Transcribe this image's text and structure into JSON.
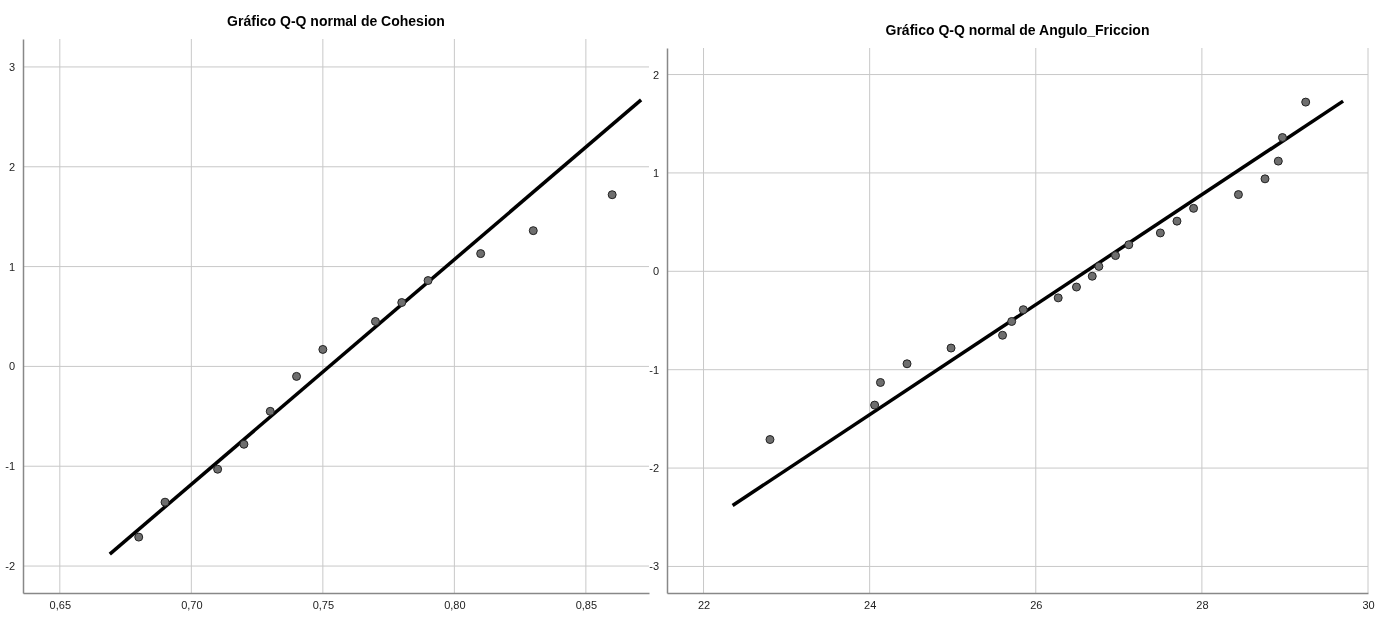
{
  "chart_data": [
    {
      "type": "scatter",
      "title": "Gráfico Q-Q normal de Cohesion",
      "grid": true,
      "xlim": [
        0.636,
        0.874
      ],
      "ylim": [
        -2.27,
        3.28
      ],
      "xticks": [
        {
          "value": 0.65,
          "label": "0,65"
        },
        {
          "value": 0.7,
          "label": "0,70"
        },
        {
          "value": 0.75,
          "label": "0,75"
        },
        {
          "value": 0.8,
          "label": "0,80"
        },
        {
          "value": 0.85,
          "label": "0,85"
        }
      ],
      "yticks": [
        -2,
        -1,
        0,
        1,
        2,
        3
      ],
      "series": [
        {
          "marker": "circle",
          "color": "#6e6e6e",
          "x": [
            0.68,
            0.69,
            0.71,
            0.72,
            0.73,
            0.74,
            0.75,
            0.77,
            0.78,
            0.79,
            0.81,
            0.83,
            0.86
          ],
          "values": [
            -1.71,
            -1.36,
            -1.03,
            -0.78,
            -0.45,
            -0.1,
            0.17,
            0.45,
            0.64,
            0.86,
            1.13,
            1.36,
            1.72
          ]
        },
        {
          "type": "line",
          "color": "#000000",
          "x": [
            0.669,
            0.871
          ],
          "values": [
            -1.88,
            2.67
          ]
        }
      ]
    },
    {
      "type": "scatter",
      "title": "Gráfico Q-Q normal de Angulo_Friccion",
      "grid": true,
      "xlim": [
        21.56,
        30
      ],
      "ylim": [
        -3.27,
        2.27
      ],
      "xticks": [
        22,
        24,
        26,
        28,
        30
      ],
      "yticks": [
        -3,
        -2,
        -1,
        0,
        1,
        2
      ],
      "series": [
        {
          "marker": "circle",
          "color": "#6e6e6e",
          "x": [
            22.8,
            24.06,
            24.13,
            24.45,
            24.98,
            25.6,
            25.71,
            25.85,
            26.27,
            26.49,
            26.68,
            26.76,
            26.96,
            27.12,
            27.5,
            27.7,
            27.9,
            28.44,
            28.76,
            28.92,
            28.97,
            29.25
          ],
          "values": [
            -1.71,
            -1.36,
            -1.13,
            -0.94,
            -0.78,
            -0.65,
            -0.51,
            -0.39,
            -0.27,
            -0.16,
            -0.05,
            0.05,
            0.16,
            0.27,
            0.39,
            0.51,
            0.64,
            0.78,
            0.94,
            1.12,
            1.36,
            1.72
          ]
        },
        {
          "type": "line",
          "color": "#000000",
          "x": [
            22.35,
            29.7
          ],
          "values": [
            -2.38,
            1.73
          ]
        }
      ]
    }
  ]
}
